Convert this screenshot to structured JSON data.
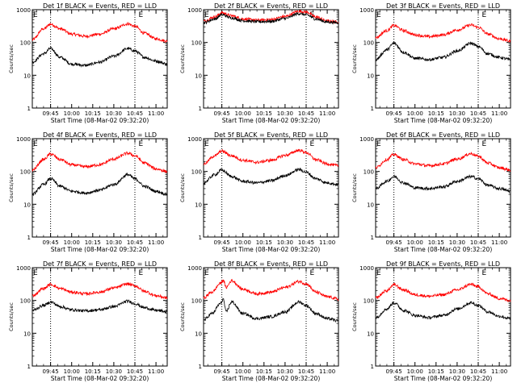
{
  "chart_data": [
    {
      "type": "line",
      "title": "Det 1f BLACK = Events, RED = LLD",
      "xlabel": "Start Time (08-Mar-02 09:32:20)",
      "ylabel": "Counts/sec",
      "yscale": "log",
      "ylim": [
        1,
        1000
      ],
      "yticks": [
        "1",
        "10",
        "100",
        "1000"
      ],
      "xticks": [
        "09:45",
        "10:00",
        "10:15",
        "10:30",
        "10:45",
        "11:00"
      ],
      "xlim": [
        "09:32",
        "11:08"
      ],
      "dotted_lines": [
        "09:45",
        "10:45"
      ],
      "markers": [
        {
          "label": "E",
          "x": "09:32"
        },
        {
          "label": "E",
          "x": "10:47"
        }
      ],
      "series": [
        {
          "color": "#ff0000",
          "x": [
            "09:32",
            "09:40",
            "09:45",
            "09:52",
            "10:00",
            "10:10",
            "10:20",
            "10:30",
            "10:40",
            "10:45",
            "10:52",
            "11:00",
            "11:08"
          ],
          "y": [
            120,
            260,
            360,
            260,
            180,
            155,
            180,
            260,
            370,
            310,
            190,
            130,
            110
          ]
        },
        {
          "color": "#000000",
          "x": [
            "09:32",
            "09:40",
            "09:45",
            "09:52",
            "10:00",
            "10:10",
            "10:20",
            "10:30",
            "10:40",
            "10:45",
            "10:52",
            "11:00",
            "11:08"
          ],
          "y": [
            25,
            45,
            65,
            35,
            22,
            20,
            25,
            38,
            65,
            55,
            35,
            27,
            22
          ]
        }
      ]
    },
    {
      "type": "line",
      "title": "Det 2f BLACK = Events, RED = LLD",
      "xlabel": "Start Time (08-Mar-02 09:32:20)",
      "ylabel": "Counts/sec",
      "yscale": "log",
      "ylim": [
        1,
        1000
      ],
      "yticks": [
        "1",
        "10",
        "100",
        "1000"
      ],
      "xticks": [
        "09:45",
        "10:00",
        "10:15",
        "10:30",
        "10:45",
        "11:00"
      ],
      "xlim": [
        "09:32",
        "11:08"
      ],
      "dotted_lines": [
        "09:45",
        "10:45"
      ],
      "markers": [
        {
          "label": "E",
          "x": "09:32"
        },
        {
          "label": "E",
          "x": "10:47"
        }
      ],
      "series": [
        {
          "color": "#ff0000",
          "x": [
            "09:32",
            "09:40",
            "09:45",
            "09:52",
            "10:00",
            "10:10",
            "10:20",
            "10:30",
            "10:40",
            "10:45",
            "10:52",
            "11:00",
            "11:08"
          ],
          "y": [
            450,
            600,
            800,
            650,
            520,
            480,
            500,
            620,
            900,
            850,
            600,
            450,
            420
          ]
        },
        {
          "color": "#000000",
          "x": [
            "09:32",
            "09:40",
            "09:45",
            "09:52",
            "10:00",
            "10:10",
            "10:20",
            "10:30",
            "10:40",
            "10:45",
            "10:52",
            "11:00",
            "11:08"
          ],
          "y": [
            400,
            520,
            700,
            560,
            460,
            430,
            440,
            540,
            760,
            700,
            520,
            420,
            400
          ]
        }
      ]
    },
    {
      "type": "line",
      "title": "Det 3f BLACK = Events, RED = LLD",
      "xlabel": "Start Time (08-Mar-02 09:32:20)",
      "ylabel": "Counts/sec",
      "yscale": "log",
      "ylim": [
        1,
        1000
      ],
      "yticks": [
        "1",
        "10",
        "100",
        "1000"
      ],
      "xticks": [
        "09:45",
        "10:00",
        "10:15",
        "10:30",
        "10:45",
        "11:00"
      ],
      "xlim": [
        "09:32",
        "11:08"
      ],
      "dotted_lines": [
        "09:45",
        "10:45"
      ],
      "markers": [
        {
          "label": "E",
          "x": "09:32"
        },
        {
          "label": "E",
          "x": "10:47"
        }
      ],
      "series": [
        {
          "color": "#ff0000",
          "x": [
            "09:32",
            "09:40",
            "09:45",
            "09:52",
            "10:00",
            "10:10",
            "10:20",
            "10:30",
            "10:40",
            "10:45",
            "10:52",
            "11:00",
            "11:08"
          ],
          "y": [
            140,
            230,
            330,
            230,
            170,
            150,
            170,
            240,
            340,
            290,
            180,
            130,
            110
          ]
        },
        {
          "color": "#000000",
          "x": [
            "09:32",
            "09:40",
            "09:45",
            "09:52",
            "10:00",
            "10:10",
            "10:20",
            "10:30",
            "10:40",
            "10:45",
            "10:52",
            "11:00",
            "11:08"
          ],
          "y": [
            30,
            60,
            95,
            50,
            33,
            30,
            35,
            55,
            95,
            75,
            45,
            35,
            30
          ]
        }
      ]
    },
    {
      "type": "line",
      "title": "Det 4f BLACK = Events, RED = LLD",
      "xlabel": "Start Time (08-Mar-02 09:32:20)",
      "ylabel": "Counts/sec",
      "yscale": "log",
      "ylim": [
        1,
        1000
      ],
      "yticks": [
        "1",
        "10",
        "100",
        "1000"
      ],
      "xticks": [
        "09:45",
        "10:00",
        "10:15",
        "10:30",
        "10:45",
        "11:00"
      ],
      "xlim": [
        "09:32",
        "11:08"
      ],
      "dotted_lines": [
        "09:45",
        "10:45"
      ],
      "markers": [
        {
          "label": "E",
          "x": "09:32"
        },
        {
          "label": "E",
          "x": "10:47"
        }
      ],
      "series": [
        {
          "color": "#ff0000",
          "x": [
            "09:32",
            "09:40",
            "09:45",
            "09:52",
            "10:00",
            "10:10",
            "10:20",
            "10:30",
            "10:40",
            "10:45",
            "10:52",
            "11:00",
            "11:08"
          ],
          "y": [
            110,
            230,
            340,
            230,
            160,
            140,
            160,
            240,
            360,
            300,
            180,
            120,
            100
          ]
        },
        {
          "color": "#000000",
          "x": [
            "09:32",
            "09:40",
            "09:45",
            "09:52",
            "10:00",
            "10:10",
            "10:20",
            "10:30",
            "10:40",
            "10:45",
            "10:52",
            "11:00",
            "11:08"
          ],
          "y": [
            20,
            40,
            60,
            35,
            25,
            22,
            27,
            40,
            80,
            60,
            35,
            25,
            20
          ]
        }
      ]
    },
    {
      "type": "line",
      "title": "Det 5f BLACK = Events, RED = LLD",
      "xlabel": "Start Time (08-Mar-02 09:32:20)",
      "ylabel": "Counts/sec",
      "yscale": "log",
      "ylim": [
        1,
        1000
      ],
      "yticks": [
        "1",
        "10",
        "100",
        "1000"
      ],
      "xticks": [
        "09:45",
        "10:00",
        "10:15",
        "10:30",
        "10:45",
        "11:00"
      ],
      "xlim": [
        "09:32",
        "11:08"
      ],
      "dotted_lines": [
        "09:45",
        "10:45"
      ],
      "markers": [
        {
          "label": "E",
          "x": "09:32"
        },
        {
          "label": "E",
          "x": "10:47"
        }
      ],
      "series": [
        {
          "color": "#ff0000",
          "x": [
            "09:32",
            "09:40",
            "09:45",
            "09:52",
            "10:00",
            "10:10",
            "10:20",
            "10:30",
            "10:40",
            "10:45",
            "10:52",
            "11:00",
            "11:08"
          ],
          "y": [
            170,
            300,
            420,
            300,
            220,
            190,
            220,
            310,
            440,
            380,
            230,
            170,
            150
          ]
        },
        {
          "color": "#000000",
          "x": [
            "09:32",
            "09:40",
            "09:45",
            "09:52",
            "10:00",
            "10:10",
            "10:20",
            "10:30",
            "10:40",
            "10:45",
            "10:52",
            "11:00",
            "11:08"
          ],
          "y": [
            45,
            80,
            110,
            70,
            50,
            45,
            52,
            75,
            115,
            95,
            60,
            45,
            40
          ]
        }
      ]
    },
    {
      "type": "line",
      "title": "Det 6f BLACK = Events, RED = LLD",
      "xlabel": "Start Time (08-Mar-02 09:32:20)",
      "ylabel": "Counts/sec",
      "yscale": "log",
      "ylim": [
        1,
        1000
      ],
      "yticks": [
        "1",
        "10",
        "100",
        "1000"
      ],
      "xticks": [
        "09:45",
        "10:00",
        "10:15",
        "10:30",
        "10:45",
        "11:00"
      ],
      "xlim": [
        "09:32",
        "11:08"
      ],
      "dotted_lines": [
        "09:45",
        "10:45"
      ],
      "markers": [
        {
          "label": "E",
          "x": "09:32"
        },
        {
          "label": "E",
          "x": "10:47"
        }
      ],
      "series": [
        {
          "color": "#ff0000",
          "x": [
            "09:32",
            "09:40",
            "09:45",
            "09:52",
            "10:00",
            "10:10",
            "10:20",
            "10:30",
            "10:40",
            "10:45",
            "10:52",
            "11:00",
            "11:08"
          ],
          "y": [
            130,
            230,
            330,
            230,
            170,
            150,
            170,
            240,
            350,
            290,
            180,
            130,
            110
          ]
        },
        {
          "color": "#000000",
          "x": [
            "09:32",
            "09:40",
            "09:45",
            "09:52",
            "10:00",
            "10:10",
            "10:20",
            "10:30",
            "10:40",
            "10:45",
            "10:52",
            "11:00",
            "11:08"
          ],
          "y": [
            30,
            50,
            70,
            45,
            32,
            30,
            34,
            50,
            70,
            60,
            38,
            30,
            25
          ]
        }
      ]
    },
    {
      "type": "line",
      "title": "Det 7f BLACK = Events, RED = LLD",
      "xlabel": "Start Time (08-Mar-02 09:32:20)",
      "ylabel": "Counts/sec",
      "yscale": "log",
      "ylim": [
        1,
        1000
      ],
      "yticks": [
        "1",
        "10",
        "100",
        "1000"
      ],
      "xticks": [
        "09:45",
        "10:00",
        "10:15",
        "10:30",
        "10:45",
        "11:00"
      ],
      "xlim": [
        "09:32",
        "11:08"
      ],
      "dotted_lines": [
        "09:45",
        "10:45"
      ],
      "markers": [
        {
          "label": "E",
          "x": "09:32"
        },
        {
          "label": "E",
          "x": "10:47"
        }
      ],
      "series": [
        {
          "color": "#ff0000",
          "x": [
            "09:32",
            "09:40",
            "09:45",
            "09:52",
            "10:00",
            "10:10",
            "10:20",
            "10:30",
            "10:40",
            "10:45",
            "10:52",
            "11:00",
            "11:08"
          ],
          "y": [
            140,
            230,
            310,
            230,
            180,
            160,
            180,
            240,
            320,
            280,
            190,
            140,
            120
          ]
        },
        {
          "color": "#000000",
          "x": [
            "09:32",
            "09:40",
            "09:45",
            "09:52",
            "10:00",
            "10:10",
            "10:20",
            "10:30",
            "10:40",
            "10:45",
            "10:52",
            "11:00",
            "11:08"
          ],
          "y": [
            50,
            70,
            90,
            65,
            52,
            48,
            52,
            65,
            95,
            80,
            60,
            50,
            45
          ]
        }
      ]
    },
    {
      "type": "line",
      "title": "Det 8f BLACK = Events, RED = LLD",
      "xlabel": "Start Time (08-Mar-02 09:32:20)",
      "ylabel": "Counts/sec",
      "yscale": "log",
      "ylim": [
        1,
        1000
      ],
      "yticks": [
        "1",
        "10",
        "100",
        "1000"
      ],
      "xticks": [
        "09:45",
        "10:00",
        "10:15",
        "10:30",
        "10:45",
        "11:00"
      ],
      "xlim": [
        "09:32",
        "11:08"
      ],
      "dotted_lines": [
        "09:45",
        "10:45"
      ],
      "markers": [
        {
          "label": "E",
          "x": "09:32"
        },
        {
          "label": "E",
          "x": "10:47"
        }
      ],
      "series": [
        {
          "color": "#ff0000",
          "x": [
            "09:32",
            "09:38",
            "09:44",
            "09:46",
            "09:48",
            "09:52",
            "10:00",
            "10:10",
            "10:20",
            "10:30",
            "10:40",
            "10:45",
            "10:52",
            "11:00",
            "11:08"
          ],
          "y": [
            120,
            180,
            330,
            420,
            250,
            400,
            220,
            160,
            180,
            250,
            380,
            320,
            180,
            130,
            110
          ]
        },
        {
          "color": "#000000",
          "x": [
            "09:32",
            "09:38",
            "09:44",
            "09:46",
            "09:48",
            "09:52",
            "10:00",
            "10:10",
            "10:20",
            "10:30",
            "10:40",
            "10:45",
            "10:52",
            "11:00",
            "11:08"
          ],
          "y": [
            25,
            40,
            80,
            110,
            45,
            90,
            40,
            28,
            32,
            45,
            90,
            70,
            40,
            28,
            24
          ]
        }
      ]
    },
    {
      "type": "line",
      "title": "Det 9f BLACK = Events, RED = LLD",
      "xlabel": "Start Time (08-Mar-02 09:32:20)",
      "ylabel": "Counts/sec",
      "yscale": "log",
      "ylim": [
        1,
        1000
      ],
      "yticks": [
        "1",
        "10",
        "100",
        "1000"
      ],
      "xticks": [
        "09:45",
        "10:00",
        "10:15",
        "10:30",
        "10:45",
        "11:00"
      ],
      "xlim": [
        "09:32",
        "11:08"
      ],
      "dotted_lines": [
        "09:45",
        "10:45"
      ],
      "markers": [
        {
          "label": "E",
          "x": "09:32"
        },
        {
          "label": "E",
          "x": "10:47"
        }
      ],
      "series": [
        {
          "color": "#ff0000",
          "x": [
            "09:32",
            "09:40",
            "09:45",
            "09:52",
            "10:00",
            "10:10",
            "10:20",
            "10:30",
            "10:40",
            "10:45",
            "10:52",
            "11:00",
            "11:08"
          ],
          "y": [
            120,
            200,
            300,
            210,
            150,
            135,
            150,
            210,
            310,
            260,
            160,
            115,
            100
          ]
        },
        {
          "color": "#000000",
          "x": [
            "09:32",
            "09:40",
            "09:45",
            "09:52",
            "10:00",
            "10:10",
            "10:20",
            "10:30",
            "10:40",
            "10:45",
            "10:52",
            "11:00",
            "11:08"
          ],
          "y": [
            30,
            55,
            85,
            50,
            35,
            30,
            35,
            55,
            85,
            70,
            45,
            33,
            28
          ]
        }
      ]
    }
  ]
}
